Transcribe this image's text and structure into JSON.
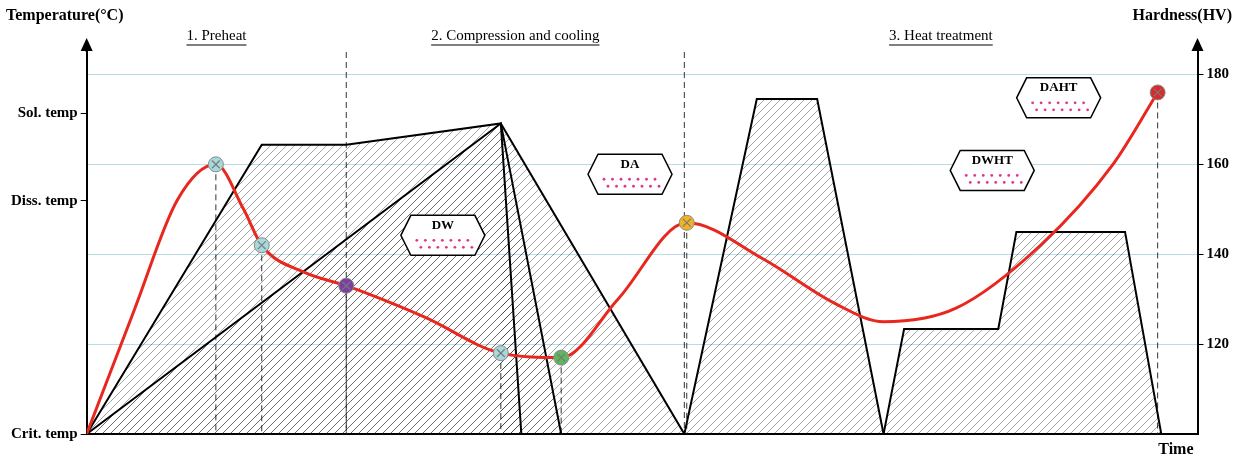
{
  "chart_data": {
    "type": "line",
    "y_label": "Temperature(°C)",
    "y2_label": "Hardness(HV)",
    "x_label": "Time",
    "phases": [
      "1. Preheat",
      "2. Compression and cooling",
      "3. Heat treatment"
    ],
    "annotations": [
      "DW",
      "DA",
      "DWHT",
      "DAHT"
    ],
    "xlim": [
      0,
      920
    ],
    "ylim": [
      0,
      100
    ],
    "yticks": [
      {
        "value": 0,
        "label": "Crit. temp"
      },
      {
        "value": 61,
        "label": "Diss. temp"
      },
      {
        "value": 84,
        "label": "Sol. temp"
      }
    ],
    "y2lim": [
      100,
      185
    ],
    "y2ticks": [
      120,
      140,
      160,
      180
    ],
    "grid": true,
    "tick_labels": "y",
    "series": [
      {
        "color": "#000000",
        "line_style": "solid",
        "x": [
          0,
          145,
          215,
          343,
          360
        ],
        "values": [
          0,
          75.7,
          75.7,
          81.3,
          0
        ]
      },
      {
        "color": "#000000",
        "line_style": "solid",
        "x": [
          0,
          343,
          393
        ],
        "values": [
          0,
          81.3,
          0
        ]
      },
      {
        "color": "#000000",
        "line_style": "solid",
        "x": [
          343,
          495
        ],
        "values": [
          81.3,
          0
        ]
      },
      {
        "color": "#000000",
        "line_style": "solid",
        "x": [
          495,
          555,
          605,
          660
        ],
        "values": [
          0,
          87.7,
          87.7,
          0
        ]
      },
      {
        "color": "#000000",
        "line_style": "solid",
        "x": [
          660,
          677,
          755,
          770,
          860,
          890
        ],
        "values": [
          0,
          27.5,
          27.5,
          52.9,
          52.9,
          0
        ]
      },
      {
        "axis": "y2",
        "color": "#e8281e",
        "line_style": "solid",
        "x": [
          0,
          40,
          75,
          107,
          130,
          145,
          180,
          215,
          280,
          343,
          393,
          440,
          497,
          560,
          620,
          660,
          720,
          790,
          850,
          887
        ],
        "values": [
          100,
          128,
          152,
          160,
          150,
          142,
          136,
          133,
          126,
          118,
          117,
          130,
          147,
          139,
          129,
          125,
          128,
          142,
          160,
          176
        ]
      },
      {
        "type": "scatter",
        "axis": "y2",
        "marker": "crossed circle",
        "colors": [
          "#a6d8dc",
          "#a6d8dc",
          "#7b3fa0",
          "#a6d8dc",
          "#5cb85c",
          "#f0b323",
          "#d62c2c"
        ],
        "x": [
          107,
          145,
          215,
          343,
          393,
          497,
          887
        ],
        "values": [
          160,
          142,
          133,
          118,
          117,
          147,
          176
        ]
      }
    ]
  }
}
